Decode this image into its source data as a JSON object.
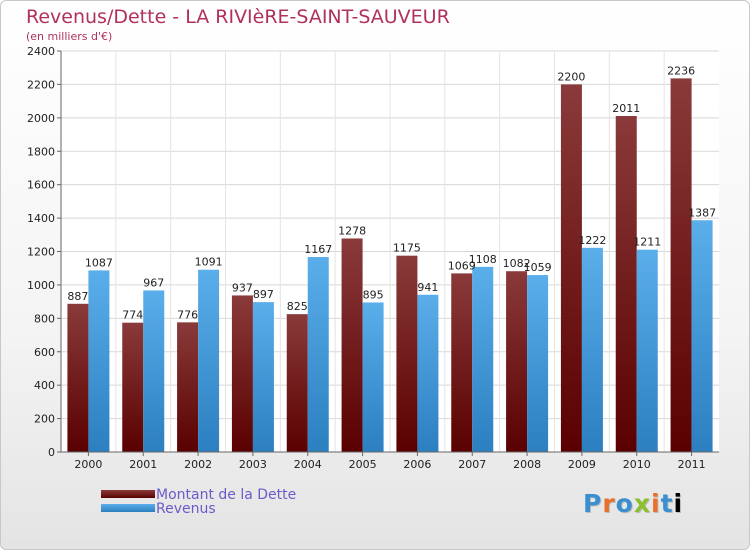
{
  "header": {
    "title": "Revenus/Dette - LA RIVIèRE-SAINT-SAUVEUR",
    "subtitle": "(en milliers d'€)"
  },
  "logo": {
    "text": "Proxiti"
  },
  "colors": {
    "title": "#b0305e",
    "debt_top": "#8a3a3a",
    "debt_bottom": "#5a0000",
    "revenue_top": "#5aaeea",
    "revenue_bottom": "#2c7fc0",
    "legend_text": "#6a5cc8"
  },
  "chart_data": {
    "type": "bar",
    "title": "Revenus/Dette - LA RIVIèRE-SAINT-SAUVEUR",
    "subtitle": "(en milliers d'€)",
    "categories": [
      "2000",
      "2001",
      "2002",
      "2003",
      "2004",
      "2005",
      "2006",
      "2007",
      "2008",
      "2009",
      "2010",
      "2011"
    ],
    "series": [
      {
        "name": "Montant de la Dette",
        "values": [
          887,
          774,
          776,
          937,
          825,
          1278,
          1175,
          1069,
          1082,
          2200,
          2011,
          2236
        ]
      },
      {
        "name": "Revenus",
        "values": [
          1087,
          967,
          1091,
          897,
          1167,
          895,
          941,
          1108,
          1059,
          1222,
          1211,
          1387
        ]
      }
    ],
    "ylim": [
      0,
      2400
    ],
    "yticks": [
      0,
      200,
      400,
      600,
      800,
      1000,
      1200,
      1400,
      1600,
      1800,
      2000,
      2200,
      2400
    ],
    "grid": true,
    "legend": "bottom-left"
  }
}
